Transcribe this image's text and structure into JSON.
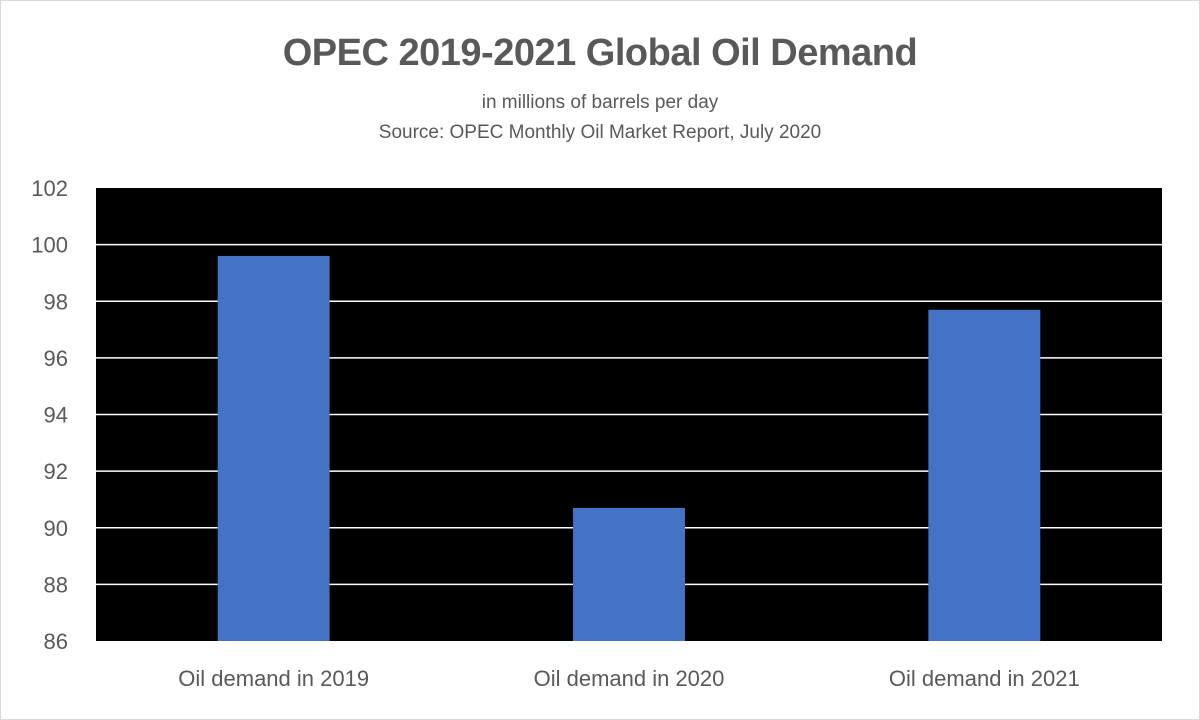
{
  "chart_data": {
    "type": "bar",
    "title": "OPEC 2019-2021 Global Oil Demand",
    "subtitle_lines": [
      "in millions of barrels per day",
      "Source: OPEC Monthly Oil Market Report, July 2020"
    ],
    "categories": [
      "Oil demand in 2019",
      "Oil demand in 2020",
      "Oil demand in 2021"
    ],
    "values": [
      99.6,
      90.7,
      97.7
    ],
    "ylim": [
      86,
      102
    ],
    "yticks": [
      86,
      88,
      90,
      92,
      94,
      96,
      98,
      100,
      102
    ],
    "grid": true,
    "legend": "none",
    "colors": {
      "bar": "#4472c4",
      "plot_background": "#000000",
      "gridline": "#ffffff"
    }
  }
}
